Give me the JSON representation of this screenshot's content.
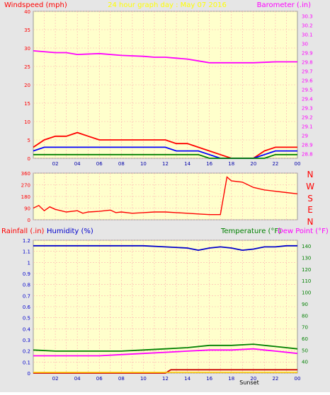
{
  "header": {
    "left_label": "Windspeed (mph)",
    "center_label": "24 hour graph day : May 07 2016",
    "right_label": "Barometer (.in)"
  },
  "colors": {
    "plot_bg": "#ffffcc",
    "grid": "#ffb0b0",
    "gust": "#ff0000",
    "wind": "#0000ff",
    "wind_low": "#008000",
    "barometer": "#ff00ff",
    "direction": "#ff0000",
    "rain": "#cc0000",
    "humidity": "#0000cc",
    "temperature": "#008000",
    "dewpoint": "#ff00ff",
    "sun": "#ffcc00"
  },
  "direction_panel": {
    "compass_labels": [
      "N",
      "W",
      "S",
      "E",
      "N"
    ]
  },
  "bottom_header": {
    "rain_label": "Rainfall (.in)",
    "humidity_label": "Humidity (%)",
    "temp_label": "Temperature (°F)",
    "dew_label": "Dew Point (°F)"
  },
  "markers": {
    "sunset": "Sunset"
  },
  "chart_data": [
    {
      "type": "line",
      "id": "wind_baro",
      "x_ticks": [
        "02",
        "04",
        "06",
        "08",
        "10",
        "12",
        "14",
        "16",
        "18",
        "20",
        "22",
        "00"
      ],
      "ylim": [
        0,
        40
      ],
      "yticks": [
        0,
        5,
        10,
        15,
        20,
        25,
        30,
        35,
        40
      ],
      "y2lim": [
        28.75,
        30.35
      ],
      "y2ticks": [
        28.8,
        28.9,
        29,
        29.1,
        29.2,
        29.3,
        29.4,
        29.5,
        29.6,
        29.7,
        29.8,
        29.9,
        30,
        30.1,
        30.2,
        30.3
      ],
      "series": [
        {
          "name": "Barometer (.in)",
          "axis": "right",
          "x": [
            0,
            2,
            3,
            4,
            6,
            8,
            10,
            11,
            12,
            13,
            14,
            15,
            16,
            17,
            18,
            19,
            20,
            22,
            24
          ],
          "values": [
            29.92,
            29.9,
            29.9,
            29.88,
            29.89,
            29.87,
            29.86,
            29.85,
            29.85,
            29.84,
            29.83,
            29.81,
            29.79,
            29.79,
            29.79,
            29.79,
            29.79,
            29.8,
            29.8
          ]
        },
        {
          "name": "gust",
          "x": [
            0,
            1,
            2,
            3,
            4,
            5,
            6,
            7,
            8,
            9,
            10,
            11,
            12,
            13,
            14,
            15,
            16,
            17,
            18,
            19,
            20,
            21,
            22,
            23,
            24
          ],
          "values": [
            3,
            5,
            6,
            6,
            7,
            6,
            5,
            5,
            5,
            5,
            5,
            5,
            5,
            4,
            4,
            3,
            2,
            1,
            0,
            0,
            0,
            2,
            3,
            3,
            3
          ]
        },
        {
          "name": "wind",
          "x": [
            0,
            1,
            2,
            3,
            4,
            5,
            6,
            7,
            8,
            9,
            10,
            11,
            12,
            13,
            14,
            15,
            16,
            17,
            18,
            19,
            20,
            21,
            22,
            23,
            24
          ],
          "values": [
            2,
            3,
            3,
            3,
            3,
            3,
            3,
            3,
            3,
            3,
            3,
            3,
            3,
            2,
            2,
            2,
            1,
            0,
            0,
            0,
            0,
            1,
            2,
            2,
            2
          ]
        },
        {
          "name": "wind_low",
          "x": [
            0,
            1,
            2,
            3,
            4,
            5,
            6,
            7,
            8,
            9,
            10,
            11,
            12,
            13,
            14,
            15,
            16,
            17,
            18,
            19,
            20,
            21,
            22,
            23,
            24
          ],
          "values": [
            1,
            1,
            1,
            1,
            1,
            1,
            1,
            1,
            1,
            1,
            1,
            1,
            1,
            1,
            1,
            1,
            0,
            0,
            0,
            0,
            0,
            0,
            1,
            1,
            1
          ]
        }
      ]
    },
    {
      "type": "line",
      "id": "direction",
      "ylim": [
        0,
        360
      ],
      "yticks": [
        0,
        90,
        180,
        270,
        360
      ],
      "series": [
        {
          "name": "direction",
          "x": [
            0,
            0.5,
            1,
            1.5,
            2,
            3,
            4,
            4.5,
            5,
            6,
            7,
            7.5,
            8,
            9,
            10,
            11,
            12,
            13,
            14,
            15,
            16,
            17,
            17.6,
            18,
            19,
            19.5,
            20,
            21,
            22,
            23,
            24
          ],
          "values": [
            90,
            110,
            70,
            100,
            80,
            60,
            70,
            50,
            60,
            65,
            75,
            55,
            60,
            50,
            55,
            60,
            60,
            55,
            50,
            45,
            40,
            40,
            330,
            300,
            290,
            270,
            250,
            230,
            220,
            210,
            200
          ]
        }
      ]
    },
    {
      "type": "line",
      "id": "rain_hum_temp",
      "x_ticks": [
        "02",
        "04",
        "06",
        "08",
        "10",
        "12",
        "14",
        "16",
        "18",
        "20",
        "22",
        "00"
      ],
      "ylim": [
        0,
        1.2
      ],
      "yticks": [
        0,
        0.1,
        0.2,
        0.3,
        0.4,
        0.5,
        0.6,
        0.7,
        0.8,
        0.9,
        1,
        1.1,
        1.2
      ],
      "y2lim": [
        30,
        145
      ],
      "y2ticks": [
        40,
        50,
        60,
        70,
        80,
        90,
        100,
        110,
        120,
        130,
        140
      ],
      "series": [
        {
          "name": "Humidity (%)",
          "axis": "left_scaled",
          "x": [
            0,
            2,
            4,
            6,
            8,
            10,
            12,
            14,
            15,
            16,
            17,
            18,
            19,
            20,
            21,
            22,
            23,
            24
          ],
          "values": [
            1.15,
            1.15,
            1.15,
            1.15,
            1.15,
            1.15,
            1.14,
            1.13,
            1.11,
            1.13,
            1.14,
            1.13,
            1.11,
            1.12,
            1.14,
            1.14,
            1.15,
            1.15
          ]
        },
        {
          "name": "Temperature (°F)",
          "axis": "right",
          "x": [
            0,
            2,
            4,
            6,
            8,
            10,
            12,
            14,
            16,
            18,
            20,
            22,
            24
          ],
          "values": [
            50,
            49,
            49,
            49,
            49,
            50,
            51,
            52,
            54,
            54,
            55,
            53,
            51
          ]
        },
        {
          "name": "Dew Point (°F)",
          "axis": "right",
          "x": [
            0,
            2,
            4,
            6,
            8,
            10,
            12,
            14,
            16,
            18,
            20,
            22,
            24
          ],
          "values": [
            45,
            45,
            45,
            45,
            46,
            47,
            48,
            49,
            50,
            50,
            51,
            49,
            47
          ]
        },
        {
          "name": "Rainfall (.in)",
          "axis": "left",
          "x": [
            0,
            2,
            4,
            6,
            8,
            10,
            12,
            12.5,
            13,
            14,
            16,
            18,
            20,
            22,
            24
          ],
          "values": [
            0,
            0,
            0,
            0,
            0,
            0,
            0,
            0.03,
            0.03,
            0.03,
            0.03,
            0.03,
            0.03,
            0.03,
            0.03
          ]
        }
      ]
    }
  ]
}
